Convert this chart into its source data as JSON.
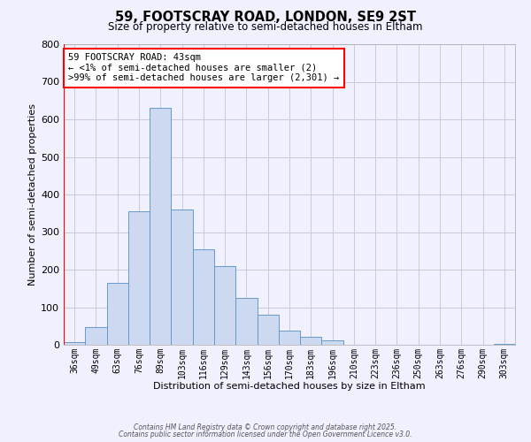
{
  "title": "59, FOOTSCRAY ROAD, LONDON, SE9 2ST",
  "subtitle": "Size of property relative to semi-detached houses in Eltham",
  "xlabel": "Distribution of semi-detached houses by size in Eltham",
  "ylabel": "Number of semi-detached properties",
  "bar_labels": [
    "36sqm",
    "49sqm",
    "63sqm",
    "76sqm",
    "89sqm",
    "103sqm",
    "116sqm",
    "129sqm",
    "143sqm",
    "156sqm",
    "170sqm",
    "183sqm",
    "196sqm",
    "210sqm",
    "223sqm",
    "236sqm",
    "250sqm",
    "263sqm",
    "276sqm",
    "290sqm",
    "303sqm"
  ],
  "bar_values": [
    8,
    46,
    165,
    355,
    630,
    360,
    255,
    210,
    125,
    80,
    37,
    22,
    12,
    0,
    0,
    0,
    0,
    0,
    0,
    0,
    2
  ],
  "bar_color": "#ccd9f0",
  "bar_edge_color": "#6699cc",
  "annotation_text": "59 FOOTSCRAY ROAD: 43sqm\n← <1% of semi-detached houses are smaller (2)\n>99% of semi-detached houses are larger (2,301) →",
  "annotation_box_color": "white",
  "annotation_box_edge_color": "red",
  "vline_color": "red",
  "ylim": [
    0,
    800
  ],
  "yticks": [
    0,
    100,
    200,
    300,
    400,
    500,
    600,
    700,
    800
  ],
  "bg_color": "#f0f0ff",
  "grid_color": "#c8c8e0",
  "footer_line1": "Contains HM Land Registry data © Crown copyright and database right 2025.",
  "footer_line2": "Contains public sector information licensed under the Open Government Licence v3.0."
}
